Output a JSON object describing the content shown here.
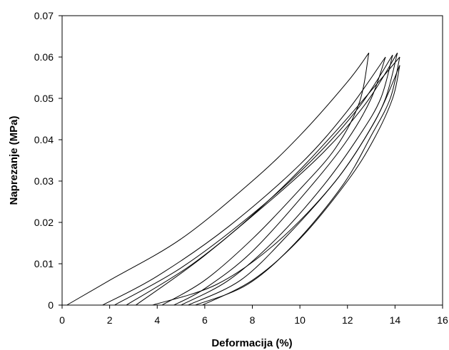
{
  "chart_data": {
    "type": "line",
    "title": "",
    "xlabel": "Deformacija (%)",
    "ylabel": "Naprezanje (MPa)",
    "xlim": [
      0,
      16
    ],
    "ylim": [
      0,
      0.07
    ],
    "x_ticks": [
      0,
      2,
      4,
      6,
      8,
      10,
      12,
      14,
      16
    ],
    "y_ticks": [
      0,
      0.01,
      0.02,
      0.03,
      0.04,
      0.05,
      0.06,
      0.07
    ],
    "x_tick_labels": [
      "0",
      "2",
      "4",
      "6",
      "8",
      "10",
      "12",
      "14",
      "16"
    ],
    "y_tick_labels": [
      "0",
      "0.01",
      "0.02",
      "0.03",
      "0.04",
      "0.05",
      "0.06",
      "0.07"
    ],
    "grid": false,
    "legend": "none",
    "series": [
      {
        "loading": [
          [
            0.2,
            0
          ],
          [
            2,
            0.006
          ],
          [
            5,
            0.016
          ],
          [
            8,
            0.03
          ],
          [
            10,
            0.041
          ],
          [
            12,
            0.054
          ],
          [
            12.9,
            0.061
          ]
        ],
        "unloading": [
          [
            12.9,
            0.061
          ],
          [
            12.5,
            0.049
          ],
          [
            11.5,
            0.038
          ],
          [
            10,
            0.028
          ],
          [
            8,
            0.016
          ],
          [
            6,
            0.006
          ],
          [
            4.2,
            0
          ]
        ]
      },
      {
        "loading": [
          [
            1.7,
            0
          ],
          [
            4,
            0.007
          ],
          [
            7,
            0.019
          ],
          [
            10,
            0.034
          ],
          [
            12,
            0.047
          ],
          [
            13.6,
            0.06
          ]
        ],
        "unloading": [
          [
            13.6,
            0.06
          ],
          [
            13,
            0.05
          ],
          [
            12,
            0.04
          ],
          [
            10.5,
            0.029
          ],
          [
            8,
            0.013
          ],
          [
            6,
            0.004
          ],
          [
            4.7,
            0
          ]
        ]
      },
      {
        "loading": [
          [
            2.2,
            0
          ],
          [
            5,
            0.009
          ],
          [
            8,
            0.022
          ],
          [
            10.5,
            0.035
          ],
          [
            12.5,
            0.048
          ],
          [
            13.9,
            0.0605
          ]
        ],
        "unloading": [
          [
            13.9,
            0.0605
          ],
          [
            13.4,
            0.05
          ],
          [
            12.5,
            0.041
          ],
          [
            11,
            0.029
          ],
          [
            9,
            0.016
          ],
          [
            7,
            0.006
          ],
          [
            5,
            0
          ]
        ]
      },
      {
        "loading": [
          [
            2.7,
            0
          ],
          [
            5.5,
            0.01
          ],
          [
            8.5,
            0.024
          ],
          [
            11,
            0.037
          ],
          [
            12.8,
            0.049
          ],
          [
            14.1,
            0.061
          ]
        ],
        "unloading": [
          [
            14.1,
            0.061
          ],
          [
            13.6,
            0.05
          ],
          [
            12.8,
            0.041
          ],
          [
            11.5,
            0.03
          ],
          [
            9.5,
            0.017
          ],
          [
            7.5,
            0.006
          ],
          [
            5.3,
            0
          ]
        ]
      },
      {
        "loading": [
          [
            3.1,
            0
          ],
          [
            6,
            0.012
          ],
          [
            9,
            0.027
          ],
          [
            11.5,
            0.042
          ],
          [
            14.2,
            0.06
          ]
        ],
        "unloading": [
          [
            14.2,
            0.06
          ],
          [
            13.8,
            0.05
          ],
          [
            13,
            0.041
          ],
          [
            11.8,
            0.029
          ],
          [
            9.8,
            0.015
          ],
          [
            7.8,
            0.005
          ],
          [
            5.6,
            0
          ]
        ]
      },
      {
        "loading": [
          [
            3.8,
            0
          ],
          [
            6.5,
            0.005
          ],
          [
            9,
            0.015
          ],
          [
            11.5,
            0.03
          ],
          [
            13.2,
            0.045
          ],
          [
            14.2,
            0.058
          ]
        ],
        "unloading": [
          [
            14.2,
            0.058
          ],
          [
            13.9,
            0.05
          ],
          [
            13.1,
            0.04
          ],
          [
            12,
            0.03
          ],
          [
            10,
            0.016
          ],
          [
            8,
            0.006
          ],
          [
            5.9,
            0
          ]
        ]
      }
    ]
  }
}
